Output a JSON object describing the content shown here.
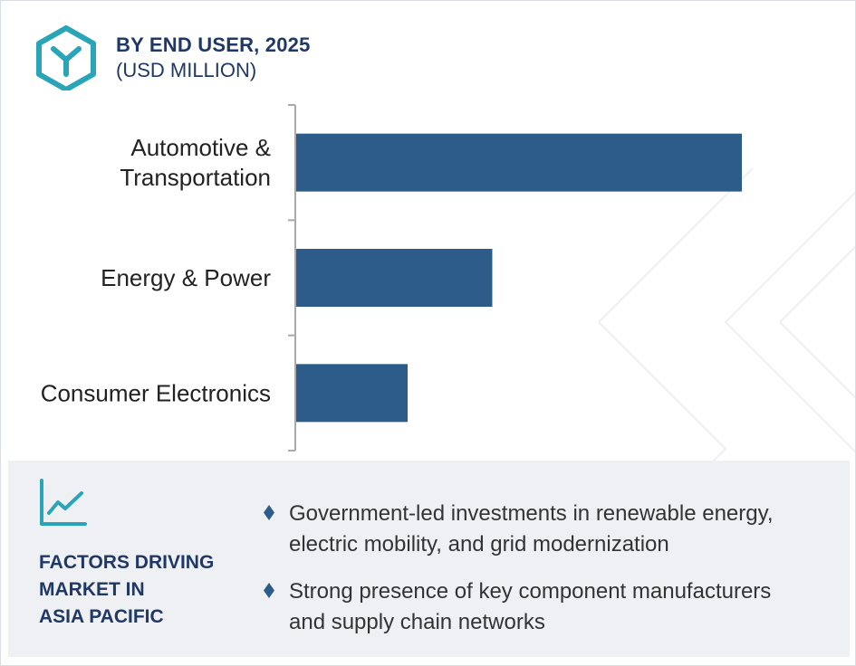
{
  "header": {
    "title": "BY END USER, 2025",
    "subtitle": "(USD MILLION)",
    "logo_icon": "hexagon-y-logo-icon"
  },
  "colors": {
    "bar": "#2e5c8a",
    "title": "#1f3864",
    "accent": "#2aa5b8",
    "panel_bg": "#eef0f4",
    "axis": "#aaaaaa",
    "label": "#222222"
  },
  "chart_data": {
    "type": "bar",
    "orientation": "horizontal",
    "title": "BY END USER, 2025",
    "subtitle": "(USD MILLION)",
    "categories": [
      [
        "Automotive &",
        "Transportation"
      ],
      [
        "Energy & Power"
      ],
      [
        "Consumer Electronics"
      ]
    ],
    "values": [
      100,
      44,
      25
    ],
    "xlabel": "",
    "ylabel": "",
    "xlim": [
      0,
      100
    ],
    "grid": false,
    "legend": "none"
  },
  "factors": {
    "icon": "line-chart-icon",
    "heading_lines": [
      "FACTORS DRIVING",
      "MARKET IN",
      "ASIA PACIFIC"
    ],
    "bullet_icon": "diamond-bullet-icon",
    "items": [
      [
        "Government-led investments in renewable energy,",
        "electric mobility, and grid modernization"
      ],
      [
        "Strong presence of key component manufacturers",
        "and supply chain networks"
      ]
    ]
  }
}
